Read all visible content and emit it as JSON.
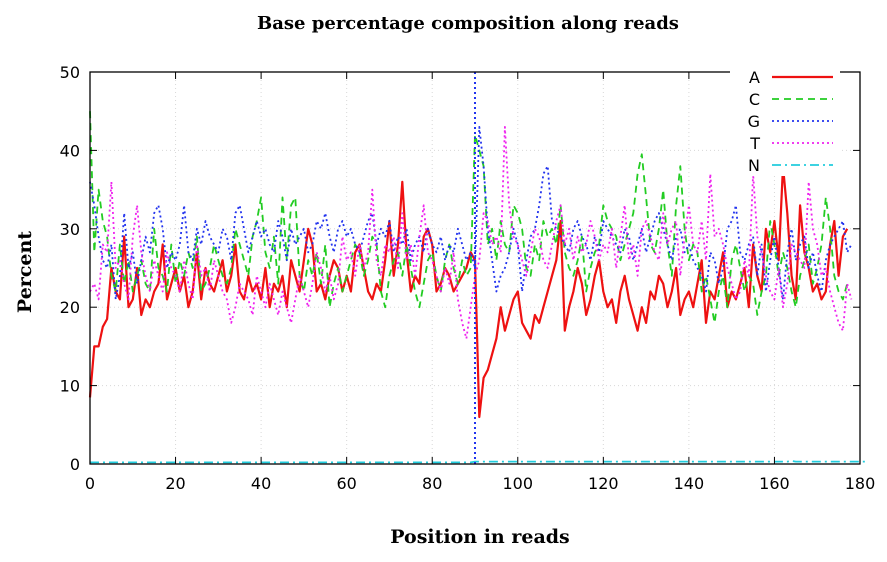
{
  "chart_data": {
    "type": "line",
    "title": "Base percentage composition  along reads",
    "xlabel": "Position in reads",
    "ylabel": "Percent",
    "xlim": [
      0,
      180
    ],
    "ylim": [
      0,
      50
    ],
    "xticks": [
      0,
      20,
      40,
      60,
      80,
      100,
      120,
      140,
      160,
      180
    ],
    "yticks": [
      0,
      10,
      20,
      30,
      40,
      50
    ],
    "grid": true,
    "legend_position": "top-right",
    "series": [
      {
        "name": "A",
        "color": "#ee1111",
        "style": "solid",
        "values": [
          8.5,
          15,
          15,
          17.5,
          18.5,
          25,
          22,
          21,
          29,
          20,
          21,
          25,
          19,
          21,
          20,
          22,
          23,
          28,
          21,
          23,
          25,
          22,
          24,
          20,
          22,
          27,
          21,
          25,
          23,
          22,
          24,
          26,
          22,
          24,
          28,
          22,
          21,
          24,
          22,
          23,
          21,
          25,
          20,
          23,
          22,
          24,
          20,
          26,
          24,
          22,
          26,
          30,
          28,
          22,
          23,
          21,
          24,
          26,
          25,
          22,
          24,
          22,
          27,
          28,
          25,
          22,
          21,
          23,
          22,
          26,
          31,
          24,
          28,
          36,
          27,
          22,
          24,
          23,
          29,
          30,
          28,
          22,
          23,
          25,
          24,
          22,
          23,
          24,
          25,
          27,
          26,
          6,
          11,
          12,
          14,
          16,
          20,
          17,
          19,
          21,
          22,
          18,
          17,
          16,
          19,
          18,
          20,
          22,
          24,
          26,
          31,
          17,
          20,
          22,
          25,
          23,
          19,
          21,
          24,
          26,
          22,
          20,
          21,
          18,
          22,
          24,
          21,
          19,
          17,
          20,
          18,
          22,
          21,
          24,
          23,
          20,
          22,
          25,
          19,
          21,
          22,
          20,
          23,
          26,
          18,
          22,
          21,
          24,
          27,
          20,
          22,
          21,
          23,
          25,
          20,
          28,
          24,
          22,
          30,
          27,
          31,
          26,
          38,
          32,
          24,
          21,
          33,
          27,
          25,
          22,
          23,
          21,
          22,
          28,
          31,
          24,
          29,
          30
        ],
        "values_note": null
      },
      {
        "name": "C",
        "color": "#22cc22",
        "style": "dashed",
        "values": [
          45,
          27,
          35,
          31,
          29,
          24,
          22,
          28,
          23,
          26,
          22,
          24,
          26,
          23,
          22,
          30,
          25,
          24,
          22,
          28,
          23,
          26,
          24,
          27,
          25,
          29,
          22,
          23,
          25,
          28,
          26,
          24,
          23,
          25,
          30,
          28,
          26,
          24,
          29,
          31,
          34,
          27,
          25,
          29,
          23,
          34,
          26,
          33,
          34,
          24,
          22,
          26,
          24,
          27,
          23,
          28,
          20,
          23,
          25,
          22,
          24,
          26,
          28,
          27,
          24,
          26,
          29,
          28,
          22,
          20,
          24,
          26,
          27,
          24,
          28,
          25,
          22,
          20,
          23,
          26,
          27,
          24,
          22,
          26,
          28,
          25,
          23,
          26,
          24,
          25,
          42,
          40,
          38,
          28,
          30,
          26,
          31,
          28,
          27,
          33,
          32,
          30,
          25,
          24,
          28,
          26,
          31,
          29,
          30,
          28,
          33,
          27,
          25,
          24,
          26,
          29,
          22,
          25,
          27,
          28,
          33,
          31,
          30,
          29,
          26,
          28,
          30,
          32,
          37,
          39.5,
          34,
          28,
          27,
          30,
          35,
          28,
          24,
          33,
          38,
          30,
          26,
          28,
          27,
          22,
          24,
          21,
          18,
          22,
          24,
          20,
          26,
          28,
          25,
          22,
          24,
          23,
          19,
          22,
          24,
          31,
          28,
          24,
          27,
          25,
          22,
          20,
          24,
          26,
          28,
          23,
          25,
          28,
          34,
          30,
          24,
          22,
          21,
          23
        ],
        "values_note": null
      },
      {
        "name": "G",
        "color": "#2233ee",
        "style": "dotted",
        "values": [
          36,
          33,
          29,
          26,
          25,
          28,
          21,
          24,
          32,
          25,
          27,
          23,
          26,
          29,
          27,
          32,
          33,
          30,
          25,
          27,
          26,
          28,
          33,
          27,
          26,
          30,
          28,
          31,
          29,
          28,
          27,
          30,
          29,
          26,
          32,
          33,
          30,
          27,
          29,
          31,
          29,
          30,
          28,
          27,
          31,
          29,
          26,
          30,
          28,
          29,
          30,
          27,
          28,
          31,
          30,
          32,
          29,
          27,
          30,
          31,
          29,
          30,
          28,
          27,
          29,
          31,
          32,
          28,
          30,
          29,
          31,
          27,
          29,
          28,
          30,
          26,
          28,
          29,
          27,
          30,
          28,
          27,
          29,
          26,
          28,
          27,
          30,
          28,
          26,
          27,
          25,
          43,
          38,
          30,
          26,
          22,
          24,
          25,
          27,
          30,
          28,
          22,
          26,
          29,
          30,
          33,
          37,
          38,
          31,
          30,
          29,
          28,
          27,
          30,
          31,
          29,
          28,
          26,
          29,
          27,
          31,
          30,
          29,
          28,
          27,
          30,
          29,
          26,
          28,
          30,
          27,
          29,
          31,
          32,
          30,
          28,
          26,
          29,
          30,
          27,
          28,
          26,
          25,
          24,
          22,
          27,
          26,
          23,
          25,
          30,
          31,
          33,
          27,
          26,
          28,
          29,
          24,
          28,
          22,
          26,
          29,
          25,
          21,
          27,
          30,
          26,
          28,
          29,
          25,
          27,
          24,
          22,
          26,
          28,
          29,
          30,
          31,
          27,
          28
        ],
        "values_note": null
      },
      {
        "name": "T",
        "color": "#ee22ee",
        "style": "dotted",
        "values": [
          22,
          23,
          21,
          28,
          27,
          36,
          25,
          26,
          23,
          21,
          29,
          33,
          27,
          24,
          22,
          26,
          24,
          22,
          27,
          25,
          24,
          22,
          26,
          23,
          21,
          28,
          24,
          25,
          22,
          26,
          24,
          22,
          21,
          18,
          20,
          23,
          22,
          21,
          19,
          24,
          22,
          20,
          23,
          21,
          19,
          22,
          20,
          18,
          21,
          24,
          22,
          20,
          23,
          27,
          25,
          22,
          24,
          21,
          23,
          29,
          26,
          27,
          24,
          28,
          25,
          27,
          35,
          26,
          24,
          28,
          27,
          29,
          25,
          32,
          26,
          28,
          24,
          29,
          33,
          27,
          26,
          24,
          22,
          25,
          23,
          27,
          21,
          18,
          16,
          20,
          24,
          26,
          32,
          31,
          28,
          29,
          27,
          43,
          33,
          29,
          28,
          26,
          24,
          27,
          30,
          29,
          26,
          25,
          28,
          31,
          33,
          28,
          30,
          26,
          29,
          27,
          28,
          31,
          29,
          26,
          28,
          27,
          30,
          25,
          29,
          33,
          26,
          28,
          24,
          30,
          31,
          29,
          27,
          26,
          32,
          28,
          30,
          31,
          24,
          29,
          33,
          28,
          27,
          31,
          26,
          37,
          29,
          30,
          28,
          25,
          23,
          21,
          22,
          26,
          24,
          37,
          29,
          27,
          24,
          22,
          21,
          25,
          20,
          23,
          28,
          27,
          26,
          25,
          36,
          30,
          28,
          24,
          25,
          22,
          20,
          18,
          17,
          23,
          21
        ],
        "values_note": null
      },
      {
        "name": "N",
        "color": "#22ccdd",
        "style": "dash-dot",
        "values": [
          0.2,
          0.2,
          0.2,
          0.2,
          0.2,
          0.2,
          0.2,
          0.2,
          0.2,
          0.2,
          0.2,
          0.2,
          0.2,
          0.2,
          0.2,
          0.2,
          0.2,
          0.2,
          0.2,
          0.2,
          0.2,
          0.2,
          0.2,
          0.2,
          0.2,
          0.2,
          0.2,
          0.2,
          0.2,
          0.2,
          0.2,
          0.2,
          0.2,
          0.2,
          0.2,
          0.2,
          0.2,
          0.2,
          0.2,
          0.2,
          0.2,
          0.2,
          0.2,
          0.2,
          0.2,
          0.2,
          0.2,
          0.2,
          0.2,
          0.2,
          0.2,
          0.2,
          0.2,
          0.2,
          0.2,
          0.2,
          0.2,
          0.2,
          0.2,
          0.2,
          0.2,
          0.2,
          0.2,
          0.2,
          0.2,
          0.2,
          0.2,
          0.2,
          0.2,
          0.2,
          0.2,
          0.2,
          0.2,
          0.2,
          0.2,
          0.2,
          0.2,
          0.2,
          0.2,
          0.2,
          0.2,
          0.2,
          0.2,
          0.2,
          0.2,
          0.2,
          0.2,
          0.2,
          0.2,
          0.2,
          0.3,
          0.3,
          0.3,
          0.3,
          0.3,
          0.3,
          0.3,
          0.3,
          0.3,
          0.3,
          0.3,
          0.3,
          0.3,
          0.3,
          0.3,
          0.3,
          0.3,
          0.3,
          0.3,
          0.3,
          0.3,
          0.3,
          0.3,
          0.3,
          0.3,
          0.3,
          0.3,
          0.3,
          0.3,
          0.3,
          0.3,
          0.3,
          0.3,
          0.3,
          0.3,
          0.3,
          0.3,
          0.3,
          0.3,
          0.3,
          0.3,
          0.3,
          0.3,
          0.3,
          0.3,
          0.3,
          0.3,
          0.3,
          0.3,
          0.3,
          0.3,
          0.3,
          0.3,
          0.3,
          0.3,
          0.3,
          0.3,
          0.3,
          0.3,
          0.3,
          0.3,
          0.3,
          0.3,
          0.3,
          0.3,
          0.3,
          0.3,
          0.3,
          0.3,
          0.3,
          0.3,
          0.3,
          0.3,
          0.3,
          0.4,
          0.3,
          0.3,
          0.3,
          0.3,
          0.3,
          0.3,
          0.3,
          0.3,
          0.3,
          0.3,
          0.3,
          0.3,
          0.3,
          0.3,
          0.3,
          0.3,
          0.3,
          0.3
        ],
        "values_note": null
      }
    ],
    "x_start": 0,
    "x_step": 1,
    "marker_line": {
      "x": 90,
      "y_from": 0,
      "y_to": 50,
      "color": "#2233ee",
      "style": "dotted"
    }
  }
}
